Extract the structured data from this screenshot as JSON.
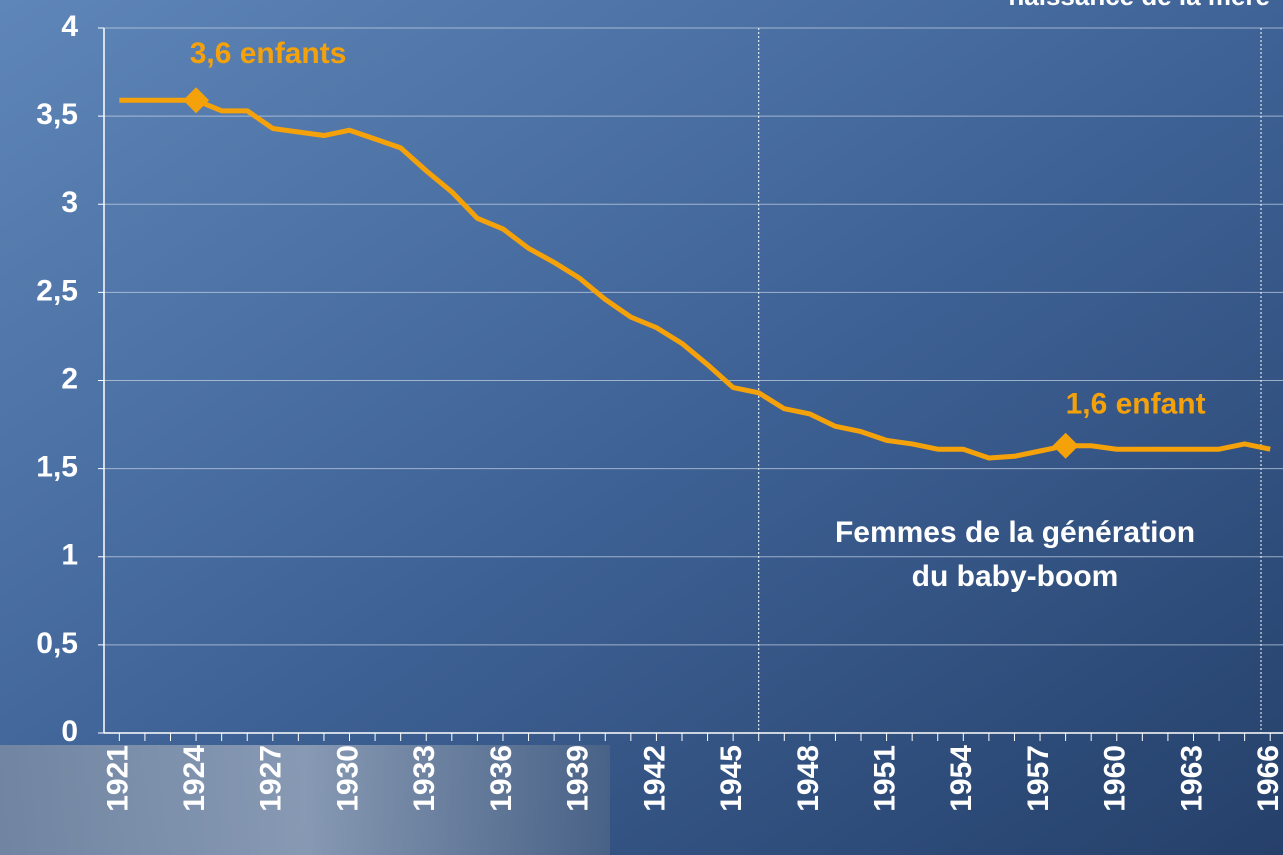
{
  "chart_data": {
    "type": "line",
    "subtitle": "naissance de la mère",
    "x": [
      1921,
      1922,
      1923,
      1924,
      1925,
      1926,
      1927,
      1928,
      1929,
      1930,
      1931,
      1932,
      1933,
      1934,
      1935,
      1936,
      1937,
      1938,
      1939,
      1940,
      1941,
      1942,
      1943,
      1944,
      1945,
      1946,
      1947,
      1948,
      1949,
      1950,
      1951,
      1952,
      1953,
      1954,
      1955,
      1956,
      1957,
      1958,
      1959,
      1960,
      1961,
      1962,
      1963,
      1964,
      1965,
      1966
    ],
    "series": [
      {
        "color": "#f5a20a",
        "values": [
          3.59,
          3.59,
          3.59,
          3.59,
          3.53,
          3.53,
          3.43,
          3.41,
          3.39,
          3.42,
          3.37,
          3.32,
          3.19,
          3.07,
          2.92,
          2.86,
          2.75,
          2.67,
          2.58,
          2.46,
          2.36,
          2.3,
          2.21,
          2.09,
          1.96,
          1.93,
          1.84,
          1.81,
          1.74,
          1.71,
          1.66,
          1.64,
          1.61,
          1.61,
          1.56,
          1.57,
          1.6,
          1.63,
          1.63,
          1.61,
          1.61,
          1.61,
          1.61,
          1.61,
          1.64,
          1.61
        ]
      }
    ],
    "markers": [
      {
        "label": "3,6 enfants",
        "x": 1924
      },
      {
        "label": "1,6 enfant",
        "x": 1958
      }
    ],
    "annotation": [
      "Femmes de la génération",
      "du baby-boom"
    ],
    "vline": 1946,
    "xlim": [
      1920.4,
      1966.5
    ],
    "xticks": [
      1921,
      1924,
      1927,
      1930,
      1933,
      1936,
      1939,
      1942,
      1945,
      1948,
      1951,
      1954,
      1957,
      1960,
      1963,
      1966
    ],
    "ylim": [
      0,
      4
    ],
    "yticks": [
      0,
      {
        "value": 0.5,
        "label": "0,5"
      },
      1,
      {
        "value": 1.5,
        "label": "1,5"
      },
      2,
      {
        "value": 2.5,
        "label": "2,5"
      },
      3,
      {
        "value": 3.5,
        "label": "3,5"
      },
      4
    ],
    "grid": true
  }
}
